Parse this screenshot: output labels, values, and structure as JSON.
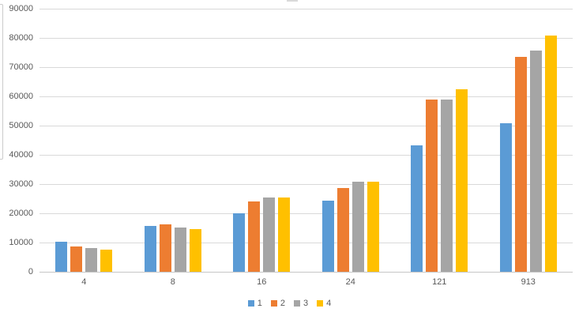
{
  "chart_data": {
    "type": "bar",
    "title": "",
    "categories": [
      "4",
      "8",
      "16",
      "24",
      "121",
      "913"
    ],
    "series": [
      {
        "name": "1",
        "color": "#5B9BD5",
        "values": [
          10400,
          15600,
          19900,
          24400,
          43200,
          50800
        ]
      },
      {
        "name": "2",
        "color": "#ED7D31",
        "values": [
          8700,
          16100,
          24100,
          28600,
          59000,
          73400
        ]
      },
      {
        "name": "3",
        "color": "#A5A5A5",
        "values": [
          8200,
          15100,
          25400,
          30800,
          58900,
          75800
        ]
      },
      {
        "name": "4",
        "color": "#FFC000",
        "values": [
          7600,
          14500,
          25300,
          30700,
          62500,
          80700
        ]
      }
    ],
    "xlabel": "",
    "ylabel": "",
    "ylim": [
      0,
      90000
    ],
    "yticks": [
      0,
      10000,
      20000,
      30000,
      40000,
      50000,
      60000,
      70000,
      80000,
      90000
    ],
    "ytick_labels": [
      "0",
      "10000",
      "20000",
      "30000",
      "40000",
      "50000",
      "60000",
      "70000",
      "80000",
      "90000"
    ],
    "grid": "horizontal",
    "legend_position": "bottom",
    "legend_labels": [
      "1",
      "2",
      "3",
      "4"
    ],
    "colors": {
      "gridline": "#D9D9D9",
      "baseline": "#C6C6C6",
      "axis_text": "#595959",
      "background": "#FFFFFF"
    }
  }
}
